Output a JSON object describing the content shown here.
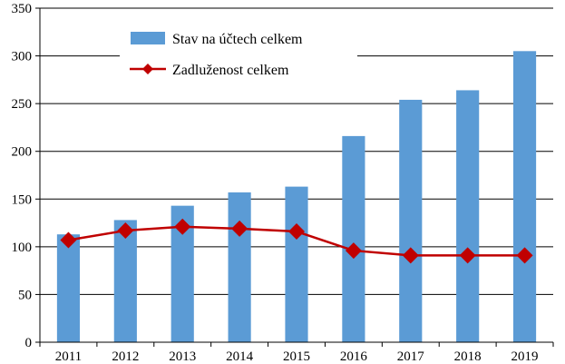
{
  "chart_data": {
    "type": "bar",
    "categories": [
      "2011",
      "2012",
      "2013",
      "2014",
      "2015",
      "2016",
      "2017",
      "2018",
      "2019"
    ],
    "series": [
      {
        "name": "Stav na účtech celkem",
        "kind": "bar",
        "color": "#5b9bd5",
        "values": [
          113,
          128,
          143,
          157,
          163,
          216,
          254,
          264,
          305
        ]
      },
      {
        "name": "Zadluženost celkem",
        "kind": "line",
        "color": "#c00000",
        "marker": "diamond",
        "values": [
          107,
          117,
          121,
          119,
          116,
          96,
          91,
          91,
          91
        ]
      }
    ],
    "ylim": [
      0,
      350
    ],
    "yticks": [
      "0",
      "50",
      "100",
      "150",
      "200",
      "250",
      "300",
      "350"
    ],
    "grid": true,
    "legend": "top-left"
  }
}
